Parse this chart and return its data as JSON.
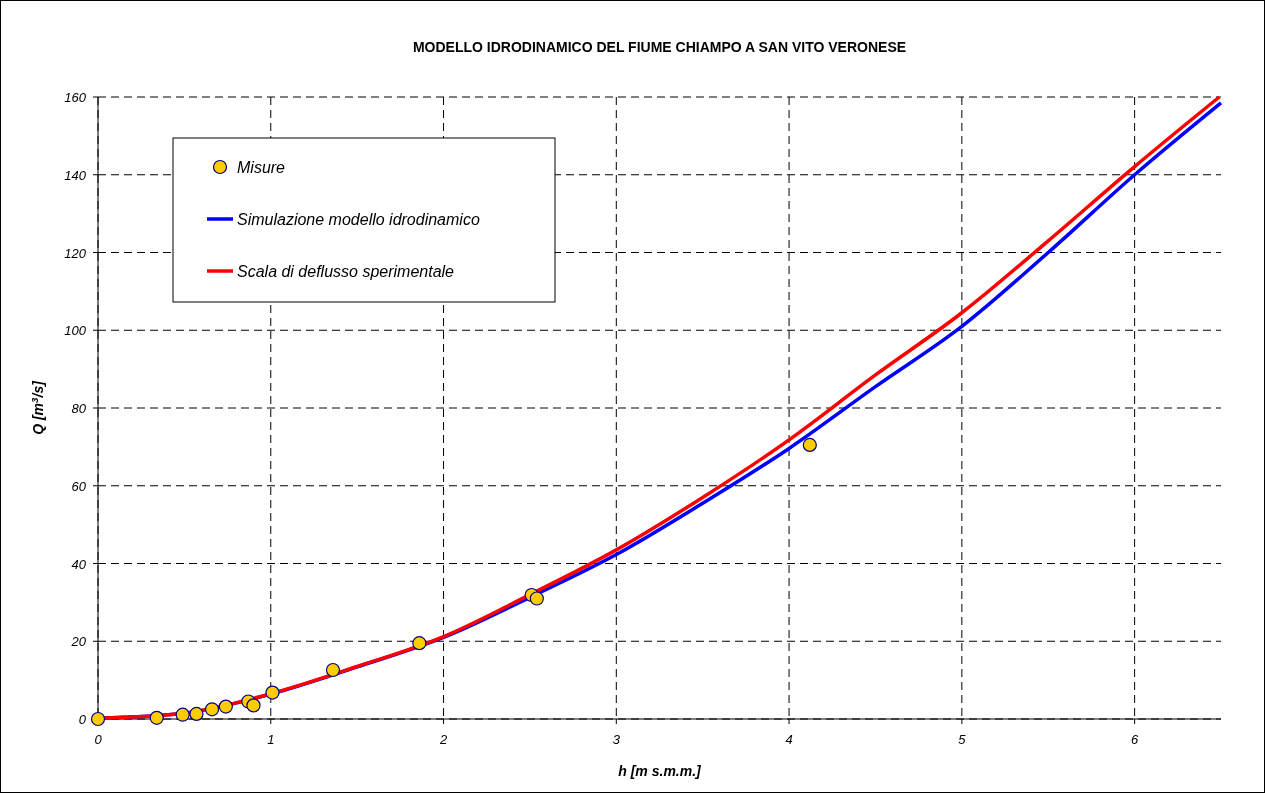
{
  "chart_data": {
    "type": "line",
    "title": "MODELLO IDRODINAMICO DEL FIUME CHIAMPO A SAN VITO VERONESE",
    "xlabel": "h [m s.m.m.]",
    "ylabel": "Q [m$^{3}$/s]",
    "xlim": [
      0,
      6.5
    ],
    "ylim": [
      0,
      160
    ],
    "xticks": [
      0,
      1,
      2,
      3,
      4,
      5,
      6
    ],
    "yticks": [
      0,
      20,
      40,
      60,
      80,
      100,
      120,
      140,
      160
    ],
    "grid": true,
    "legend": "top left",
    "line_style": "solid",
    "series": [
      {
        "name": "Misure",
        "type": "scatter",
        "marker": "circle",
        "color": "#ffcc00",
        "x": [
          0,
          0.34,
          0.49,
          0.57,
          0.66,
          0.74,
          0.87,
          0.9,
          1.01,
          1.36,
          1.86,
          2.51,
          2.54,
          4.12
        ],
        "values": [
          0,
          0.3,
          1.1,
          1.3,
          2.5,
          3.2,
          4.5,
          3.5,
          6.8,
          12.6,
          19.5,
          31.9,
          31,
          70.5
        ]
      },
      {
        "name": "Simulazione modello idrodinamico",
        "color": "#0000ff",
        "x": [
          0,
          0.5,
          1,
          1.5,
          2,
          2.5,
          3,
          3.5,
          4,
          4.5,
          5,
          5.5,
          6,
          6.5
        ],
        "values": [
          0.2,
          1.5,
          6.4,
          13.4,
          21,
          31.3,
          42.3,
          55.5,
          69.6,
          85.5,
          101,
          120,
          140,
          158.5
        ]
      },
      {
        "name": "Scala di deflusso sperimentale",
        "color": "#ff0000",
        "x": [
          0,
          0.5,
          1,
          1.5,
          2,
          2.5,
          3,
          3.5,
          4,
          4.5,
          5,
          5.5,
          6,
          6.49
        ],
        "values": [
          0.2,
          1.5,
          6.5,
          13.5,
          21.2,
          32,
          43.5,
          57,
          71.8,
          88.5,
          104.5,
          123,
          142.1,
          160
        ]
      }
    ]
  }
}
